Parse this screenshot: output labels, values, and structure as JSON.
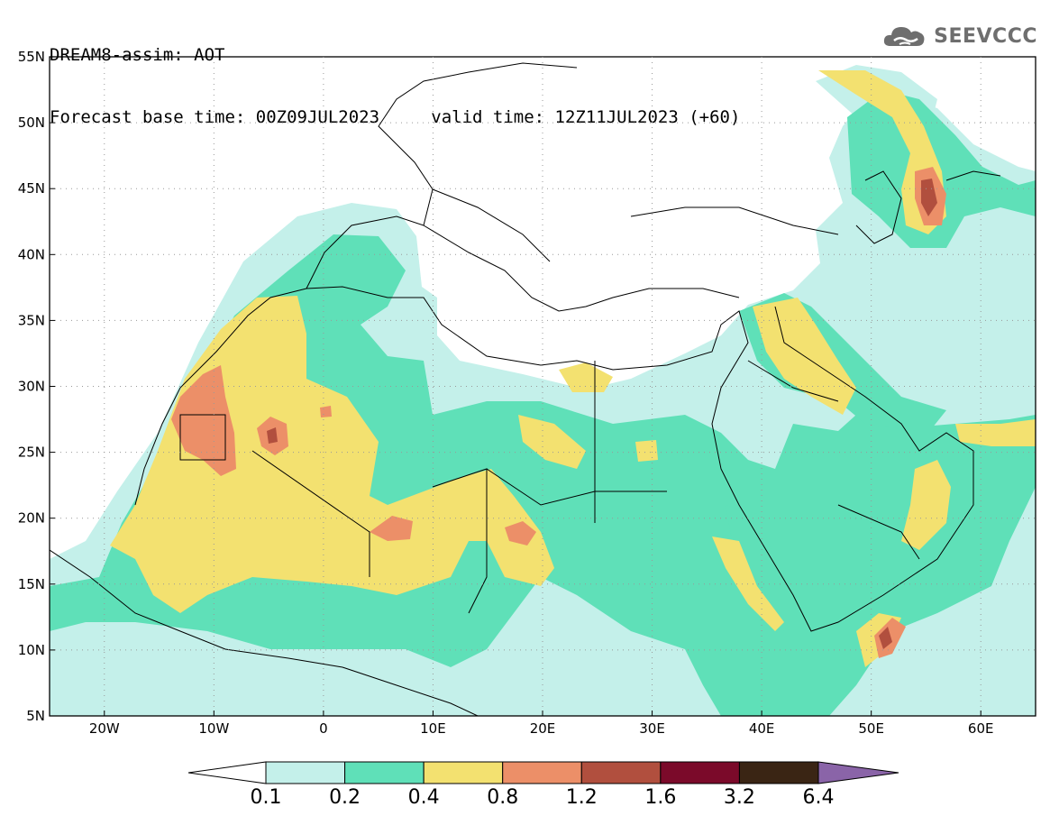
{
  "header": {
    "model_line": "DREAM8-assim: AOT",
    "base_time_label": "Forecast base time: 00Z09JUL2023",
    "valid_time_label": "valid time: 12Z11JUL2023 (+60)"
  },
  "logo": {
    "text": "SEEVCCC",
    "icon": "cloud-icon"
  },
  "map": {
    "lon_range": [
      -25,
      65
    ],
    "lat_range": [
      5,
      55
    ],
    "lat_ticks": [
      "55N",
      "50N",
      "45N",
      "40N",
      "35N",
      "30N",
      "25N",
      "20N",
      "15N",
      "10N",
      "5N"
    ],
    "lon_ticks": [
      "20W",
      "10W",
      "0",
      "10E",
      "20E",
      "30E",
      "40E",
      "50E",
      "60E"
    ]
  },
  "colorbar": {
    "labels": [
      "0.1",
      "0.2",
      "0.4",
      "0.8",
      "1.2",
      "1.6",
      "3.2",
      "6.4"
    ],
    "colors": [
      "#c4f0ea",
      "#5fe0b8",
      "#f3e170",
      "#ec8f68",
      "#b14f3e",
      "#7b0a2a",
      "#3a2514",
      "#8a64a8"
    ]
  }
}
